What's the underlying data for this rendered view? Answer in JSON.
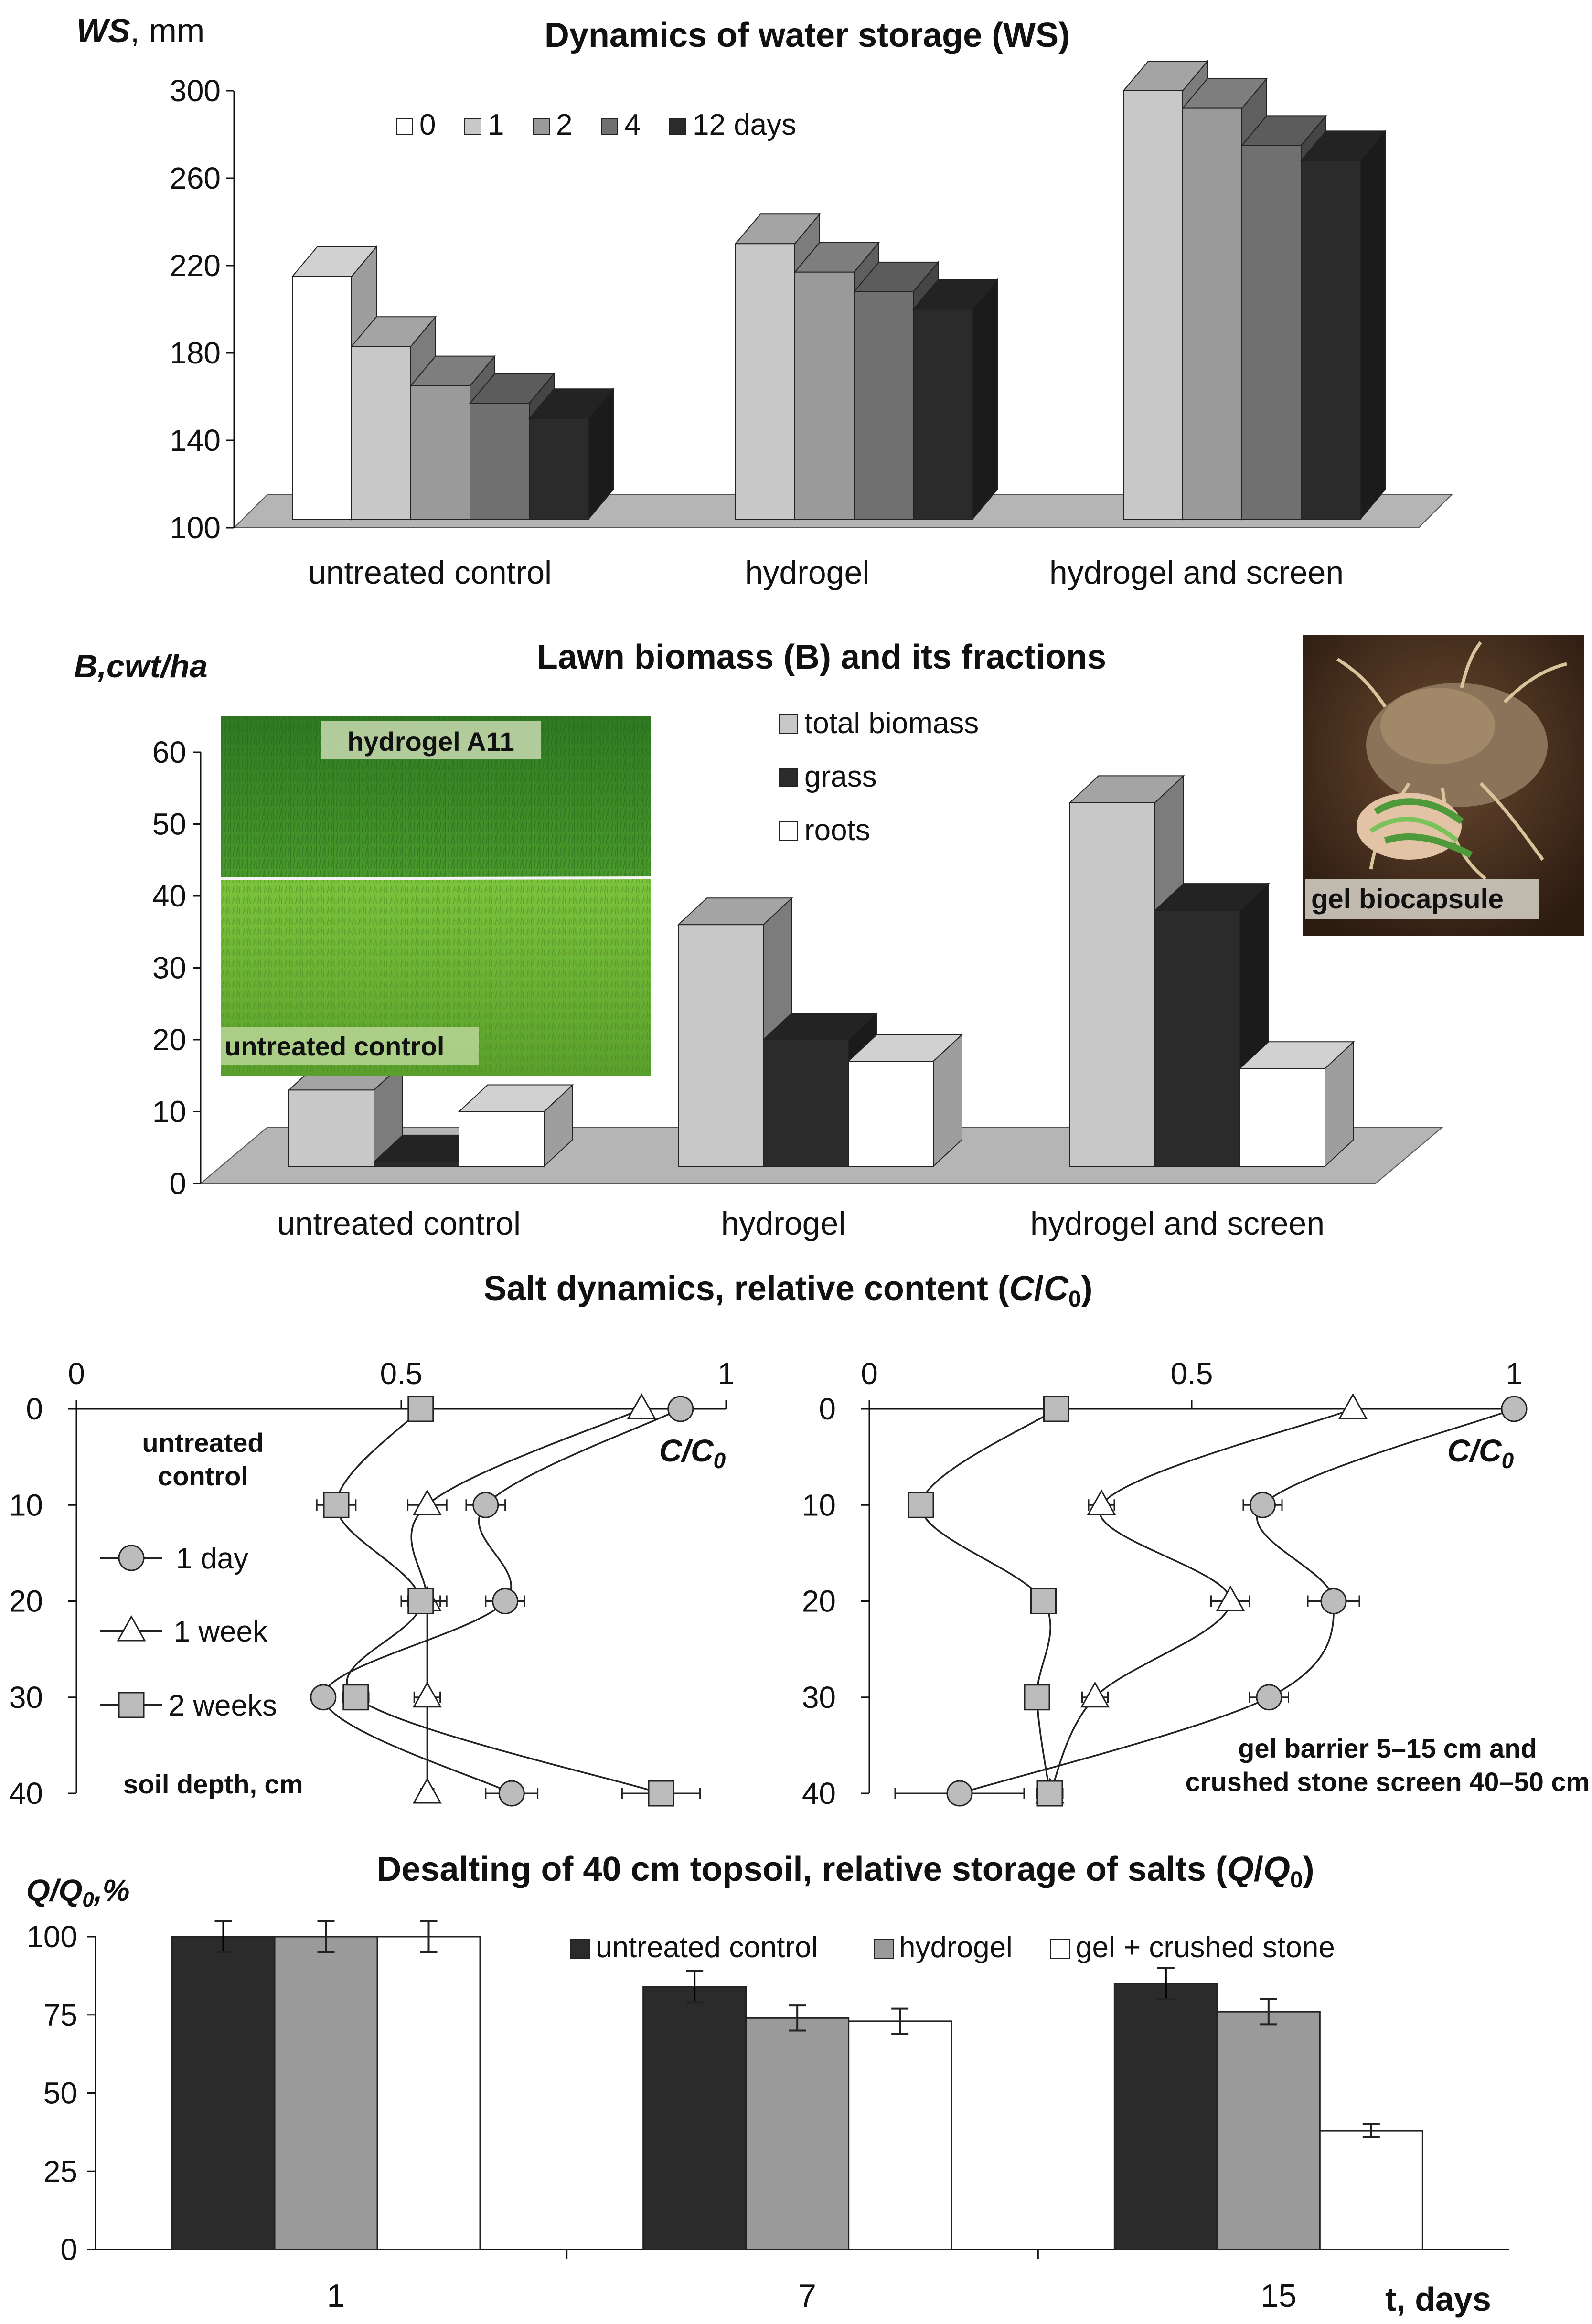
{
  "chart_data": [
    {
      "type": "bar",
      "style": "3d",
      "title": "Dynamics of water storage (WS)",
      "ylabel_main": "WS",
      "ylabel_unit": ", mm",
      "categories": [
        "untreated control",
        "hydrogel",
        "hydrogel and screen"
      ],
      "ylim": [
        100,
        300
      ],
      "yticks": [
        100,
        140,
        180,
        220,
        260,
        300
      ],
      "legend_suffix": " days",
      "series": [
        {
          "name": "0",
          "color": "#ffffff",
          "values": [
            215,
            null,
            null
          ]
        },
        {
          "name": "1",
          "color": "#c8c8c8",
          "values": [
            183,
            230,
            300
          ]
        },
        {
          "name": "2",
          "color": "#9a9a9a",
          "values": [
            165,
            217,
            292
          ]
        },
        {
          "name": "4",
          "color": "#707070",
          "values": [
            157,
            208,
            275
          ]
        },
        {
          "name": "12",
          "color": "#2b2b2b",
          "values": [
            150,
            200,
            268
          ]
        }
      ]
    },
    {
      "type": "bar",
      "style": "3d",
      "title": "Lawn biomass (B) and its fractions",
      "ylabel": "B,cwt/ha",
      "categories": [
        "untreated control",
        "hydrogel",
        "hydrogel and screen"
      ],
      "ylim": [
        0,
        60
      ],
      "yticks": [
        0,
        10,
        20,
        30,
        40,
        50,
        60
      ],
      "series": [
        {
          "name": "total biomass",
          "color": "#c8c8c8",
          "values": [
            13,
            36,
            53
          ]
        },
        {
          "name": "grass",
          "color": "#2b2b2b",
          "values": [
            3,
            20,
            38
          ]
        },
        {
          "name": "roots",
          "color": "#ffffff",
          "values": [
            10,
            17,
            16
          ]
        }
      ],
      "photo_labels": {
        "lawn_top": "hydrogel A11",
        "lawn_bottom": "untreated control",
        "capsule": "gel biocapsule"
      }
    },
    {
      "type": "line",
      "title": "Salt dynamics, relative content (C/C0)",
      "panels": [
        {
          "xlim": [
            0,
            1
          ],
          "xticks": [
            "0",
            "0.5",
            "1"
          ],
          "depth_ticks": [
            "0",
            "10",
            "20",
            "30",
            "40"
          ],
          "depths": [
            0,
            10,
            20,
            30,
            40
          ],
          "curve_label": "C/C0",
          "note": "untreated control",
          "axis_label": "soil depth, cm",
          "series": [
            {
              "name": "1 day",
              "marker": "circle",
              "values": [
                0.93,
                0.63,
                0.66,
                0.38,
                0.67
              ],
              "err": [
                0,
                0.03,
                0.03,
                0.01,
                0.04
              ]
            },
            {
              "name": "1 week",
              "marker": "triangle",
              "values": [
                0.87,
                0.54,
                0.54,
                0.54,
                0.54
              ],
              "err": [
                0,
                0.03,
                0.03,
                0.02,
                0.01
              ]
            },
            {
              "name": "2 weeks",
              "marker": "square",
              "values": [
                0.53,
                0.4,
                0.53,
                0.43,
                0.9
              ],
              "err": [
                0,
                0.03,
                0.03,
                0.02,
                0.06
              ]
            }
          ]
        },
        {
          "xlim": [
            0,
            1
          ],
          "xticks": [
            "0",
            "0.5",
            "1"
          ],
          "depth_ticks": [
            "0",
            "10",
            "20",
            "30",
            "40"
          ],
          "depths": [
            0,
            10,
            20,
            30,
            40
          ],
          "curve_label": "C/C0",
          "note": "gel barrier 5–15 cm and crushed stone screen 40–50 cm",
          "series": [
            {
              "name": "1 day",
              "marker": "circle",
              "values": [
                1.0,
                0.61,
                0.72,
                0.62,
                0.14
              ],
              "err": [
                0,
                0.03,
                0.04,
                0.03,
                0.1
              ]
            },
            {
              "name": "1 week",
              "marker": "triangle",
              "values": [
                0.75,
                0.36,
                0.56,
                0.35,
                0.28
              ],
              "err": [
                0,
                0.02,
                0.03,
                0.02,
                0.02
              ]
            },
            {
              "name": "2 weeks",
              "marker": "square",
              "values": [
                0.29,
                0.08,
                0.27,
                0.26,
                0.28
              ],
              "err": [
                0,
                0.01,
                0.01,
                0.01,
                0.02
              ]
            }
          ]
        }
      ]
    },
    {
      "type": "bar",
      "title": "Desalting of 40 cm topsoil, relative storage of salts (Q/Q0)",
      "ylabel": "Q/Q0,%",
      "xlabel": "t, days",
      "categories": [
        "1",
        "7",
        "15"
      ],
      "ylim": [
        0,
        100
      ],
      "yticks": [
        0,
        25,
        50,
        75,
        100
      ],
      "series": [
        {
          "name": "untreated control",
          "color": "#2b2b2b",
          "values": [
            100,
            84,
            85
          ],
          "err": [
            5,
            5,
            5
          ]
        },
        {
          "name": "hydrogel",
          "color": "#9a9a9a",
          "values": [
            100,
            74,
            76
          ],
          "err": [
            5,
            4,
            4
          ]
        },
        {
          "name": "gel + crushed stone",
          "color": "#ffffff",
          "values": [
            100,
            73,
            38
          ],
          "err": [
            5,
            4,
            2
          ]
        }
      ]
    }
  ]
}
